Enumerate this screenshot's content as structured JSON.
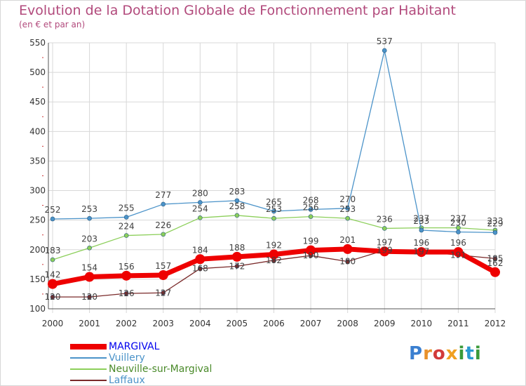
{
  "title": "Evolution de la Dotation Globale de Fonctionnement par Habitant",
  "subtitle": "(en € et par an)",
  "logo": {
    "text": "Proxiti",
    "letters": [
      "P",
      "r",
      "o",
      "x",
      "i",
      "t",
      "i"
    ]
  },
  "colors": {
    "title": "#b24a7c",
    "grid": "#d8d8d8",
    "axis": "#555555",
    "marginal": "#ee0000",
    "vuillery": "#4b93c9",
    "neuville": "#8ccf5a",
    "laffaux": "#7a2a2a",
    "legend_marginal": "#0000ee",
    "legend_vuillery": "#4b93c9",
    "legend_neuville": "#4a8a2a",
    "legend_laffaux": "#4b93c9"
  },
  "chart_data": {
    "type": "line",
    "title": "Evolution de la Dotation Globale de Fonctionnement par Habitant",
    "ylabel": "(en € et par an)",
    "xlabel": "",
    "ylim": [
      100,
      550
    ],
    "yticks": [
      100,
      150,
      200,
      250,
      300,
      350,
      400,
      450,
      500,
      550
    ],
    "categories": [
      "2000",
      "2001",
      "2002",
      "2003",
      "2004",
      "2005",
      "2006",
      "2007",
      "2008",
      "2009",
      "2010",
      "2011",
      "2012"
    ],
    "series": [
      {
        "name": "MARGIVAL",
        "values": [
          142,
          154,
          156,
          157,
          184,
          188,
          192,
          199,
          201,
          197,
          196,
          196,
          162
        ]
      },
      {
        "name": "Vuillery",
        "values": [
          252,
          253,
          255,
          277,
          280,
          283,
          265,
          268,
          270,
          537,
          233,
          230,
          229
        ]
      },
      {
        "name": "Neuville-sur-Margival",
        "values": [
          183,
          203,
          224,
          226,
          254,
          258,
          253,
          256,
          253,
          236,
          237,
          237,
          233
        ]
      },
      {
        "name": "Laffaux",
        "values": [
          120,
          120,
          126,
          127,
          168,
          172,
          182,
          190,
          180,
          199,
          197,
          191,
          185
        ]
      }
    ]
  }
}
